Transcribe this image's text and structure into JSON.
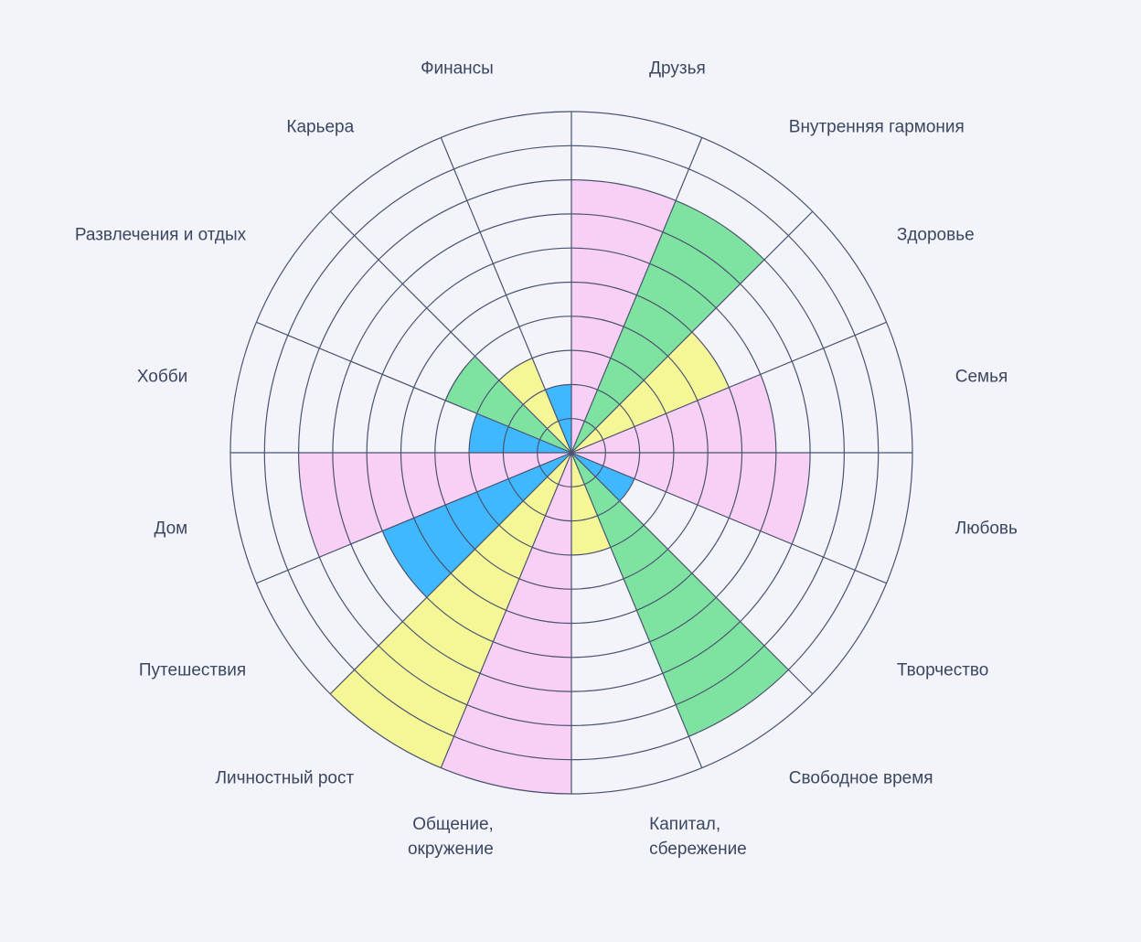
{
  "chart_data": {
    "type": "polar-bar",
    "max_level": 10,
    "grid": true,
    "palette": {
      "pink": "#f9d0f5",
      "green": "#7ee3a0",
      "yellow": "#f5f797",
      "blue": "#3fb8ff",
      "grid_line": "#4a5370",
      "background": "#f2f4f9"
    },
    "segments": [
      {
        "name": "Друзья",
        "value": 8,
        "color": "pink"
      },
      {
        "name": "Внутренняя гармония",
        "value": 8,
        "color": "green"
      },
      {
        "name": "Здоровье",
        "value": 5,
        "color": "yellow"
      },
      {
        "name": "Семья",
        "value": 6,
        "color": "pink"
      },
      {
        "name": "Любовь",
        "value": 7,
        "color": "pink"
      },
      {
        "name": "Творчество",
        "value": 2,
        "color": "blue"
      },
      {
        "name": "Свободное время",
        "value": 9,
        "color": "green"
      },
      {
        "name": "Капитал,\nсбережение",
        "value": 3,
        "color": "yellow"
      },
      {
        "name": "Общение,\nокружение",
        "value": 10,
        "color": "pink"
      },
      {
        "name": "Личностный рост",
        "value": 10,
        "color": "yellow"
      },
      {
        "name": "Путешествия",
        "value": 6,
        "color": "blue"
      },
      {
        "name": "Дом",
        "value": 8,
        "color": "pink"
      },
      {
        "name": "Хобби",
        "value": 3,
        "color": "blue"
      },
      {
        "name": "Развлечения и отдых",
        "value": 4,
        "color": "green"
      },
      {
        "name": "Карьера",
        "value": 3,
        "color": "yellow"
      },
      {
        "name": "Финансы",
        "value": 2,
        "color": "blue"
      }
    ]
  }
}
